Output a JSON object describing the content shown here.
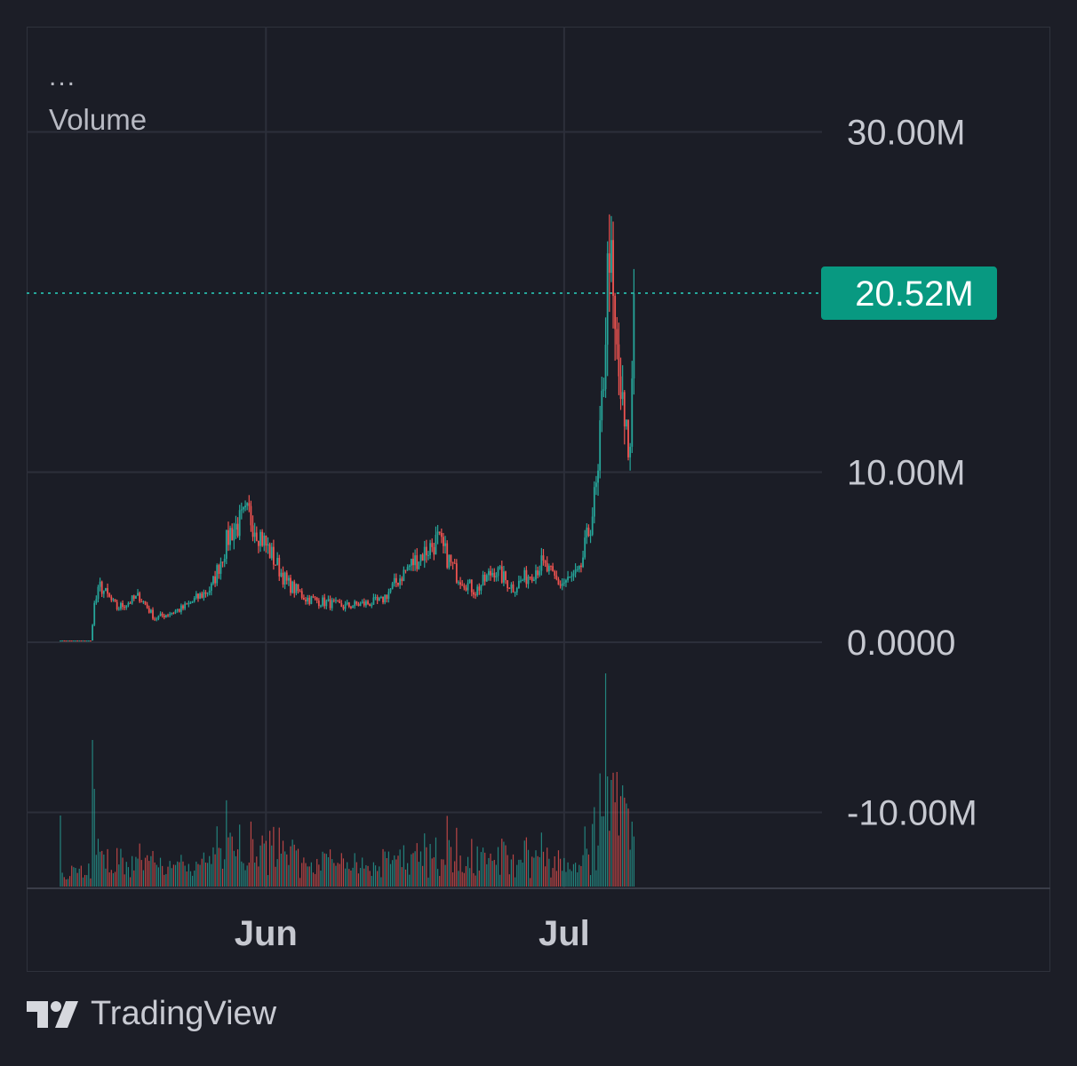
{
  "legend": {
    "menu_label": "...",
    "title": "Volume"
  },
  "brand": {
    "name": "TradingView",
    "logo_icon": "tradingview-logo-icon"
  },
  "colors": {
    "up": "#26a69a",
    "down": "#ef5350",
    "grid": "#2c2f3a",
    "text": "#c6c8d0",
    "last_value_badge": "#089981"
  },
  "chart_data": {
    "type": "candlestick",
    "title": "Volume",
    "y_axis": {
      "ticks": [
        {
          "value": 30000000,
          "label": "30.00M"
        },
        {
          "value": 10000000,
          "label": "10.00M"
        },
        {
          "value": 0,
          "label": "0.0000"
        },
        {
          "value": -10000000,
          "label": "-10.00M"
        }
      ],
      "range": [
        -14300000,
        36000000
      ]
    },
    "x_axis": {
      "ticks": [
        {
          "label": "Jun",
          "bar_index": 100
        },
        {
          "label": "Jul",
          "bar_index": 251
        }
      ],
      "total_slots": 342
    },
    "last_value": {
      "value": 20520000,
      "label": "20.52M"
    },
    "grid": true,
    "key_points": [
      {
        "bar_index": 0,
        "value": 100000
      },
      {
        "bar_index": 16,
        "value": 100000
      },
      {
        "bar_index": 18,
        "value": 2200000
      },
      {
        "bar_index": 21,
        "value": 3300000
      },
      {
        "bar_index": 30,
        "value": 2000000
      },
      {
        "bar_index": 42,
        "value": 2700000
      },
      {
        "bar_index": 50,
        "value": 1400000
      },
      {
        "bar_index": 65,
        "value": 2000000
      },
      {
        "bar_index": 80,
        "value": 3200000
      },
      {
        "bar_index": 90,
        "value": 6500000
      },
      {
        "bar_index": 100,
        "value": 7500000
      },
      {
        "bar_index": 110,
        "value": 5500000
      },
      {
        "bar_index": 120,
        "value": 3500000
      },
      {
        "bar_index": 130,
        "value": 2600000
      },
      {
        "bar_index": 150,
        "value": 2100000
      },
      {
        "bar_index": 170,
        "value": 2400000
      },
      {
        "bar_index": 185,
        "value": 4500000
      },
      {
        "bar_index": 200,
        "value": 6000000
      },
      {
        "bar_index": 210,
        "value": 4000000
      },
      {
        "bar_index": 220,
        "value": 3000000
      },
      {
        "bar_index": 230,
        "value": 4300000
      },
      {
        "bar_index": 240,
        "value": 3200000
      },
      {
        "bar_index": 255,
        "value": 4600000
      },
      {
        "bar_index": 265,
        "value": 3400000
      },
      {
        "bar_index": 275,
        "value": 4000000
      },
      {
        "bar_index": 280,
        "value": 6500000
      },
      {
        "bar_index": 285,
        "value": 9500000
      },
      {
        "bar_index": 288,
        "value": 16000000
      },
      {
        "bar_index": 291,
        "value": 24000000
      },
      {
        "bar_index": 293,
        "value": 19000000
      },
      {
        "bar_index": 296,
        "value": 15500000
      },
      {
        "bar_index": 299,
        "value": 12500000
      },
      {
        "bar_index": 302,
        "value": 11000000
      },
      {
        "bar_index": 304,
        "value": 20520000
      }
    ]
  }
}
